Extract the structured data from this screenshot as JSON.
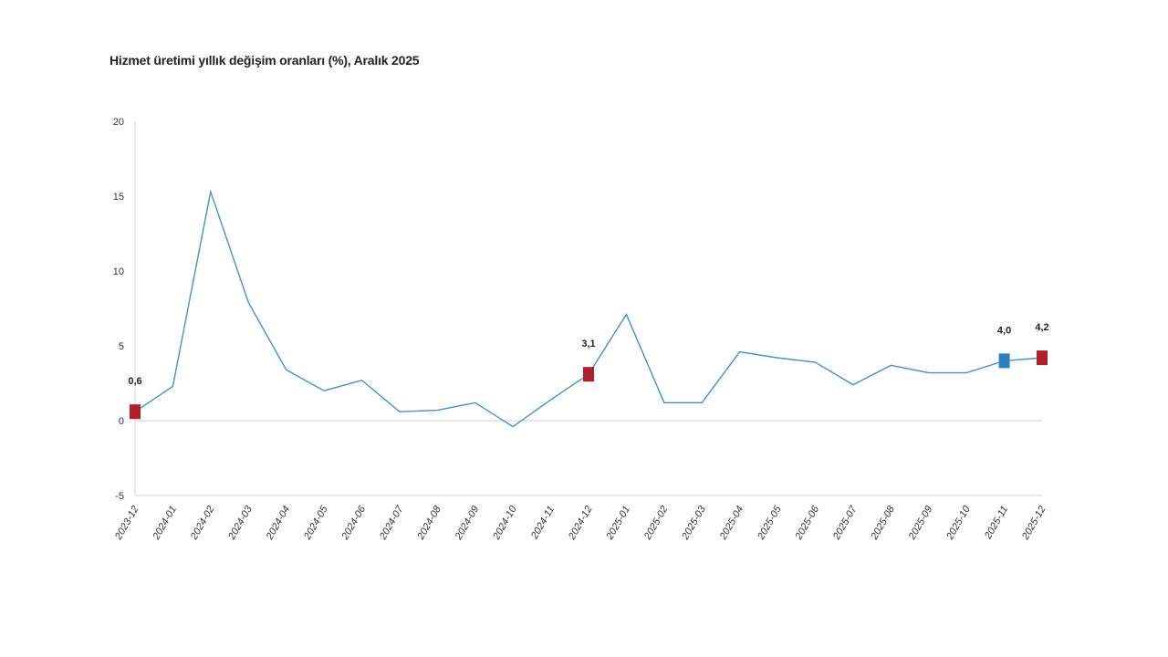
{
  "chart_data": {
    "type": "line",
    "title": "Hizmet üretimi yıllık değişim oranları (%), Aralık 2025",
    "xlabel": "",
    "ylabel": "",
    "ylim": [
      -5,
      20
    ],
    "yticks": [
      "20",
      "15",
      "10",
      "5",
      "0",
      "-5"
    ],
    "categories": [
      "2023-12",
      "2024-01",
      "2024-02",
      "2024-03",
      "2024-04",
      "2024-05",
      "2024-06",
      "2024-07",
      "2024-08",
      "2024-09",
      "2024-10",
      "2024-11",
      "2024-12",
      "2025-01",
      "2025-02",
      "2025-03",
      "2025-04",
      "2025-05",
      "2025-06",
      "2025-07",
      "2025-08",
      "2025-09",
      "2025-10",
      "2025-11",
      "2025-12"
    ],
    "series": [
      {
        "values": [
          0.6,
          2.3,
          15.3,
          7.9,
          3.4,
          2.0,
          2.7,
          0.6,
          0.7,
          1.2,
          -0.4,
          1.4,
          3.1,
          7.1,
          1.2,
          1.2,
          4.6,
          4.2,
          3.9,
          2.4,
          3.7,
          3.2,
          3.2,
          4.0,
          4.2
        ]
      }
    ],
    "line_color": "#4a90c4",
    "highlights": [
      {
        "index": 0,
        "label": "0,6",
        "color": "#b0202a"
      },
      {
        "index": 12,
        "label": "3,1",
        "color": "#b0202a"
      },
      {
        "index": 23,
        "label": "4,0",
        "color": "#2e7fc0"
      },
      {
        "index": 24,
        "label": "4,2",
        "color": "#b0202a"
      }
    ],
    "grid": false,
    "legend": "none"
  }
}
